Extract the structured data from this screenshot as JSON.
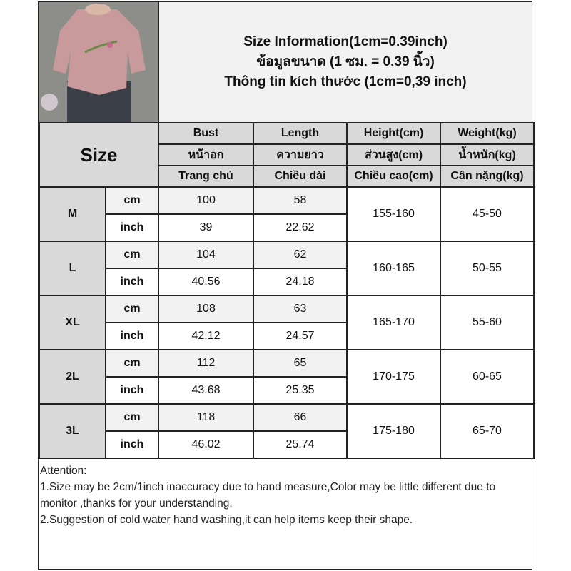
{
  "title_lines": [
    "Size Information(1cm=0.39inch)",
    "ข้อมูลขนาด (1 ซม. = 0.39 นิ้ว)",
    "Thông tin kích thước (1cm=0,39 inch)"
  ],
  "size_header": "Size",
  "columns": [
    [
      "Bust",
      "หน้าอก",
      "Trang chủ"
    ],
    [
      "Length",
      "ความยาว",
      "Chiều dài"
    ],
    [
      "Height(cm)",
      "ส่วนสูง(cm)",
      "Chiều cao(cm)"
    ],
    [
      "Weight(kg)",
      "น้ำหนัก(kg)",
      "Cân nặng(kg)"
    ]
  ],
  "rows": [
    {
      "size": "M",
      "cm": [
        "100",
        "58"
      ],
      "inch": [
        "39",
        "22.62"
      ],
      "height": "155-160",
      "weight": "45-50"
    },
    {
      "size": "L",
      "cm": [
        "104",
        "62"
      ],
      "inch": [
        "40.56",
        "24.18"
      ],
      "height": "160-165",
      "weight": "50-55"
    },
    {
      "size": "XL",
      "cm": [
        "108",
        "63"
      ],
      "inch": [
        "42.12",
        "24.57"
      ],
      "height": "165-170",
      "weight": "55-60"
    },
    {
      "size": "2L",
      "cm": [
        "112",
        "65"
      ],
      "inch": [
        "43.68",
        "25.35"
      ],
      "height": "170-175",
      "weight": "60-65"
    },
    {
      "size": "3L",
      "cm": [
        "118",
        "66"
      ],
      "inch": [
        "46.02",
        "25.74"
      ],
      "height": "175-180",
      "weight": "65-70"
    }
  ],
  "units": {
    "cm": "cm",
    "inch": "inch"
  },
  "notes": [
    "Attention:",
    "1.Size may be 2cm/1inch inaccuracy due to hand measure,Color may be little different due to monitor ,thanks for your understanding.",
    "2.Suggestion of cold water hand washing,it can help items keep their shape."
  ]
}
